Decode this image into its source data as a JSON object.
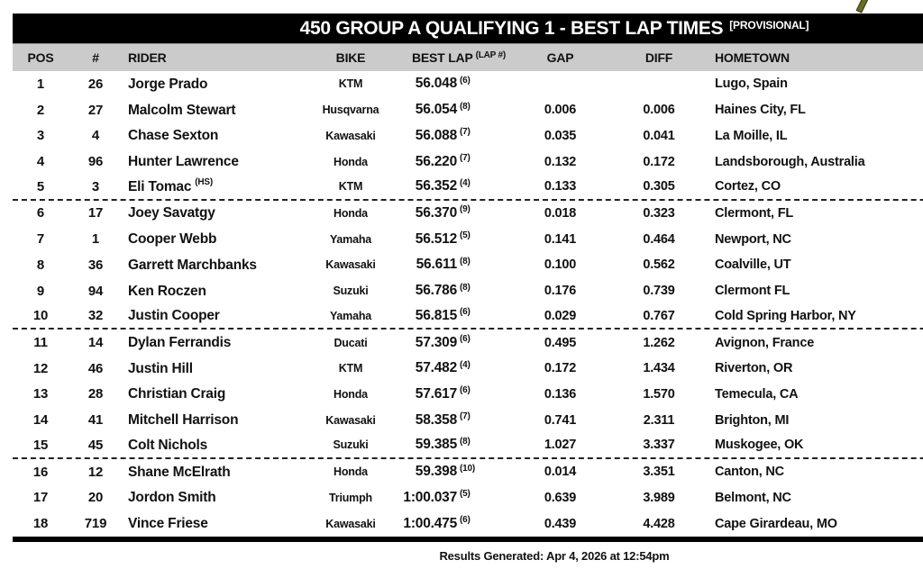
{
  "title": {
    "main": "450 GROUP A QUALIFYING 1 - BEST LAP TIMES",
    "tag": "[PROVISIONAL]"
  },
  "columns": {
    "pos": "POS",
    "num": "#",
    "rider": "RIDER",
    "bike": "BIKE",
    "best_lap": "BEST LAP",
    "lap_note": "(LAP #)",
    "gap": "GAP",
    "diff": "DIFF",
    "hometown": "HOMETOWN"
  },
  "colors": {
    "title_bar": "#000000",
    "header_band": "#cbcbcb",
    "text": "#111111",
    "logo_fragment_green": "#66701f"
  },
  "rows": [
    {
      "pos": "1",
      "num": "26",
      "rider": "Jorge Prado",
      "note": "",
      "bike": "KTM",
      "best_lap": "56.048",
      "lap": "(6)",
      "gap": "",
      "diff": "",
      "hometown": "Lugo, Spain"
    },
    {
      "pos": "2",
      "num": "27",
      "rider": "Malcolm Stewart",
      "note": "",
      "bike": "Husqvarna",
      "best_lap": "56.054",
      "lap": "(8)",
      "gap": "0.006",
      "diff": "0.006",
      "hometown": "Haines City, FL"
    },
    {
      "pos": "3",
      "num": "4",
      "rider": "Chase Sexton",
      "note": "",
      "bike": "Kawasaki",
      "best_lap": "56.088",
      "lap": "(7)",
      "gap": "0.035",
      "diff": "0.041",
      "hometown": "La Moille, IL"
    },
    {
      "pos": "4",
      "num": "96",
      "rider": "Hunter Lawrence",
      "note": "",
      "bike": "Honda",
      "best_lap": "56.220",
      "lap": "(7)",
      "gap": "0.132",
      "diff": "0.172",
      "hometown": "Landsborough, Australia"
    },
    {
      "pos": "5",
      "num": "3",
      "rider": "Eli Tomac",
      "note": "(HS)",
      "bike": "KTM",
      "best_lap": "56.352",
      "lap": "(4)",
      "gap": "0.133",
      "diff": "0.305",
      "hometown": "Cortez, CO",
      "group_end": true
    },
    {
      "pos": "6",
      "num": "17",
      "rider": "Joey Savatgy",
      "note": "",
      "bike": "Honda",
      "best_lap": "56.370",
      "lap": "(9)",
      "gap": "0.018",
      "diff": "0.323",
      "hometown": "Clermont, FL"
    },
    {
      "pos": "7",
      "num": "1",
      "rider": "Cooper Webb",
      "note": "",
      "bike": "Yamaha",
      "best_lap": "56.512",
      "lap": "(5)",
      "gap": "0.141",
      "diff": "0.464",
      "hometown": "Newport, NC"
    },
    {
      "pos": "8",
      "num": "36",
      "rider": "Garrett Marchbanks",
      "note": "",
      "bike": "Kawasaki",
      "best_lap": "56.611",
      "lap": "(8)",
      "gap": "0.100",
      "diff": "0.562",
      "hometown": "Coalville, UT"
    },
    {
      "pos": "9",
      "num": "94",
      "rider": "Ken Roczen",
      "note": "",
      "bike": "Suzuki",
      "best_lap": "56.786",
      "lap": "(8)",
      "gap": "0.176",
      "diff": "0.739",
      "hometown": "Clermont FL"
    },
    {
      "pos": "10",
      "num": "32",
      "rider": "Justin Cooper",
      "note": "",
      "bike": "Yamaha",
      "best_lap": "56.815",
      "lap": "(6)",
      "gap": "0.029",
      "diff": "0.767",
      "hometown": "Cold Spring Harbor, NY",
      "group_end": true
    },
    {
      "pos": "11",
      "num": "14",
      "rider": "Dylan Ferrandis",
      "note": "",
      "bike": "Ducati",
      "best_lap": "57.309",
      "lap": "(6)",
      "gap": "0.495",
      "diff": "1.262",
      "hometown": "Avignon, France"
    },
    {
      "pos": "12",
      "num": "46",
      "rider": "Justin Hill",
      "note": "",
      "bike": "KTM",
      "best_lap": "57.482",
      "lap": "(4)",
      "gap": "0.172",
      "diff": "1.434",
      "hometown": "Riverton, OR"
    },
    {
      "pos": "13",
      "num": "28",
      "rider": "Christian Craig",
      "note": "",
      "bike": "Honda",
      "best_lap": "57.617",
      "lap": "(6)",
      "gap": "0.136",
      "diff": "1.570",
      "hometown": "Temecula, CA"
    },
    {
      "pos": "14",
      "num": "41",
      "rider": "Mitchell Harrison",
      "note": "",
      "bike": "Kawasaki",
      "best_lap": "58.358",
      "lap": "(7)",
      "gap": "0.741",
      "diff": "2.311",
      "hometown": "Brighton, MI"
    },
    {
      "pos": "15",
      "num": "45",
      "rider": "Colt Nichols",
      "note": "",
      "bike": "Suzuki",
      "best_lap": "59.385",
      "lap": "(8)",
      "gap": "1.027",
      "diff": "3.337",
      "hometown": "Muskogee, OK",
      "group_end": true
    },
    {
      "pos": "16",
      "num": "12",
      "rider": "Shane McElrath",
      "note": "",
      "bike": "Honda",
      "best_lap": "59.398",
      "lap": "(10)",
      "gap": "0.014",
      "diff": "3.351",
      "hometown": "Canton, NC"
    },
    {
      "pos": "17",
      "num": "20",
      "rider": "Jordon Smith",
      "note": "",
      "bike": "Triumph",
      "best_lap": "1:00.037",
      "lap": "(5)",
      "gap": "0.639",
      "diff": "3.989",
      "hometown": "Belmont, NC"
    },
    {
      "pos": "18",
      "num": "719",
      "rider": "Vince Friese",
      "note": "",
      "bike": "Kawasaki",
      "best_lap": "1:00.475",
      "lap": "(6)",
      "gap": "0.439",
      "diff": "4.428",
      "hometown": "Cape Girardeau, MO"
    }
  ],
  "footer": {
    "generated": "Results Generated: Apr 4, 2026 at 12:54pm"
  }
}
